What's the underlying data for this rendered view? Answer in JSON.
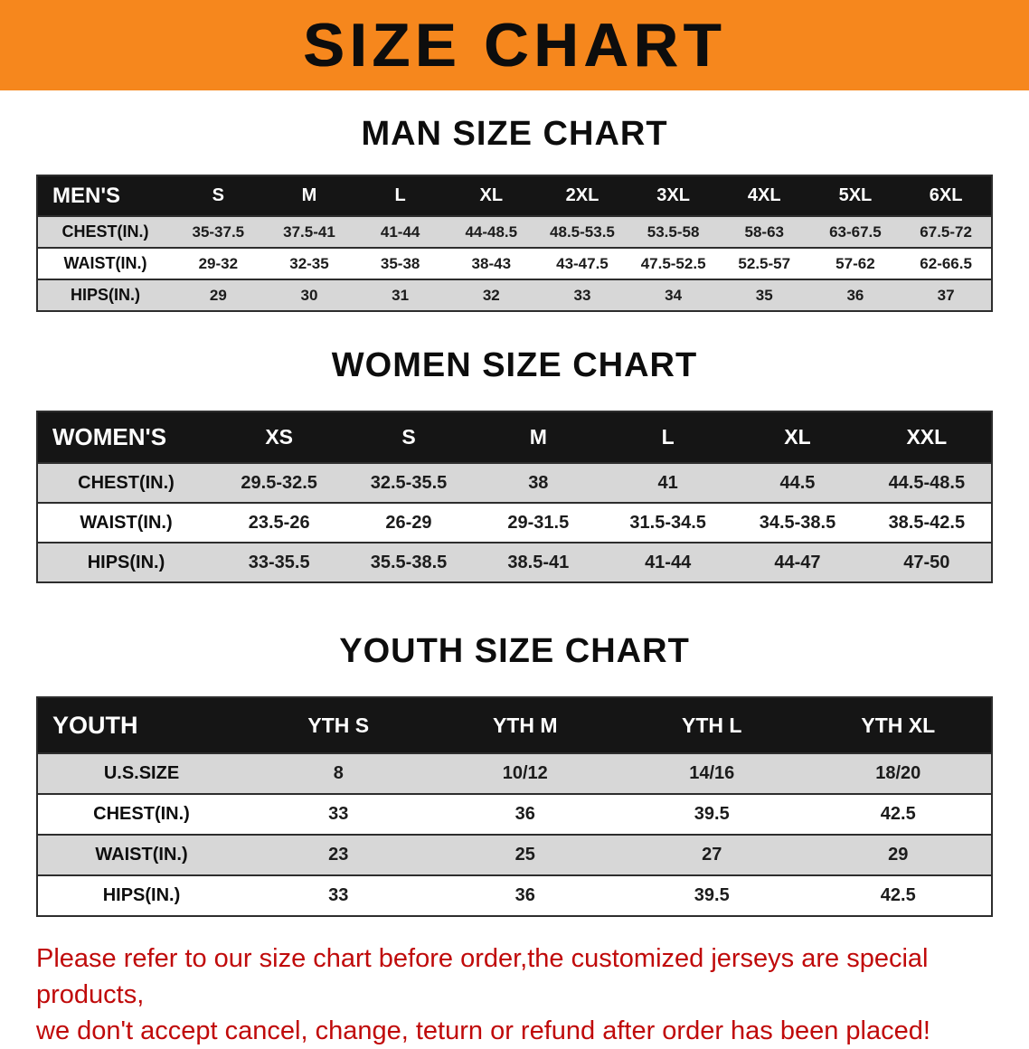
{
  "banner": {
    "title": "SIZE CHART"
  },
  "colors": {
    "banner_bg": "#F6871D",
    "table_header_bg": "#151515",
    "row_stripe": "#D7D7D7",
    "disclaimer_text": "#C00A0A"
  },
  "sections": [
    {
      "heading": "MAN SIZE CHART",
      "table": {
        "header": [
          "MEN'S",
          "S",
          "M",
          "L",
          "XL",
          "2XL",
          "3XL",
          "4XL",
          "5XL",
          "6XL"
        ],
        "rows": [
          [
            "CHEST(IN.)",
            "35-37.5",
            "37.5-41",
            "41-44",
            "44-48.5",
            "48.5-53.5",
            "53.5-58",
            "58-63",
            "63-67.5",
            "67.5-72"
          ],
          [
            "WAIST(IN.)",
            "29-32",
            "32-35",
            "35-38",
            "38-43",
            "43-47.5",
            "47.5-52.5",
            "52.5-57",
            "57-62",
            "62-66.5"
          ],
          [
            "HIPS(IN.)",
            "29",
            "30",
            "31",
            "32",
            "33",
            "34",
            "35",
            "36",
            "37"
          ]
        ]
      }
    },
    {
      "heading": "WOMEN SIZE CHART",
      "table": {
        "header": [
          "WOMEN'S",
          "XS",
          "S",
          "M",
          "L",
          "XL",
          "XXL"
        ],
        "rows": [
          [
            "CHEST(IN.)",
            "29.5-32.5",
            "32.5-35.5",
            "38",
            "41",
            "44.5",
            "44.5-48.5"
          ],
          [
            "WAIST(IN.)",
            "23.5-26",
            "26-29",
            "29-31.5",
            "31.5-34.5",
            "34.5-38.5",
            "38.5-42.5"
          ],
          [
            "HIPS(IN.)",
            "33-35.5",
            "35.5-38.5",
            "38.5-41",
            "41-44",
            "44-47",
            "47-50"
          ]
        ]
      }
    },
    {
      "heading": "YOUTH SIZE CHART",
      "table": {
        "header": [
          "YOUTH",
          "YTH S",
          "YTH M",
          "YTH L",
          "YTH XL"
        ],
        "rows": [
          [
            "U.S.SIZE",
            "8",
            "10/12",
            "14/16",
            "18/20"
          ],
          [
            "CHEST(IN.)",
            "33",
            "36",
            "39.5",
            "42.5"
          ],
          [
            "WAIST(IN.)",
            "23",
            "25",
            "27",
            "29"
          ],
          [
            "HIPS(IN.)",
            "33",
            "36",
            "39.5",
            "42.5"
          ]
        ]
      }
    }
  ],
  "disclaimer": {
    "line1": "Please refer to our size chart before order,the customized jerseys are special products,",
    "line2": "we don't accept cancel, change, teturn or refund after order has been placed!"
  }
}
